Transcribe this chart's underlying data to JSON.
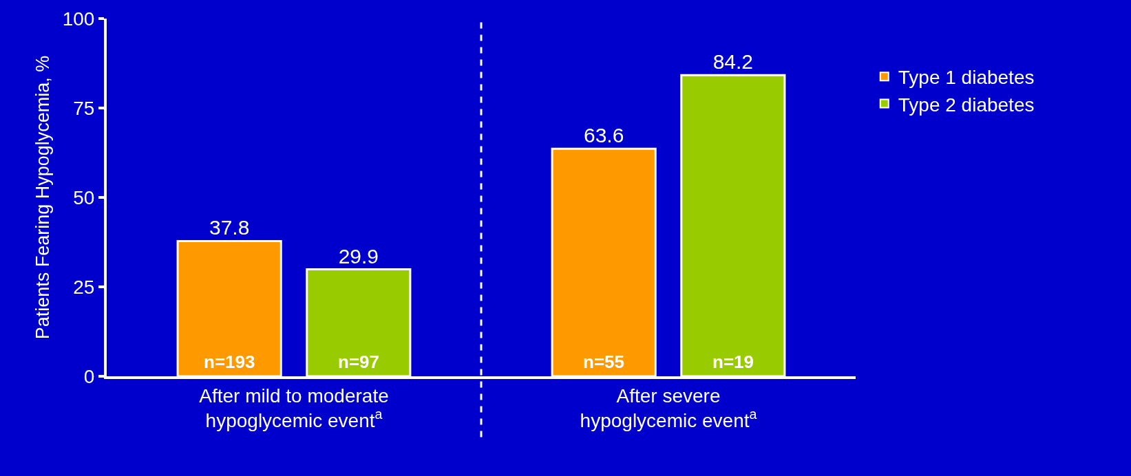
{
  "chart_data": {
    "type": "bar",
    "ylabel": "Patients Fearing Hypoglycemia, %",
    "categories": [
      "After mild to moderate hypoglycemic event$^{a}$",
      "After severe hypoglycemic event$^{a}$"
    ],
    "series": [
      {
        "name": "Type 1 diabetes",
        "color": "#ff9900",
        "values": [
          37.8,
          63.6
        ]
      },
      {
        "name": "Type 2 diabetes",
        "color": "#99cc00",
        "values": [
          29.9,
          84.2
        ]
      }
    ],
    "ylim": [
      0,
      100
    ],
    "yticks": [
      0,
      25,
      50,
      75,
      100
    ],
    "grid": false,
    "legend": "right",
    "data_labels": true,
    "annotations": [
      "n=193",
      "n=97",
      "n=55",
      "n=19"
    ]
  }
}
